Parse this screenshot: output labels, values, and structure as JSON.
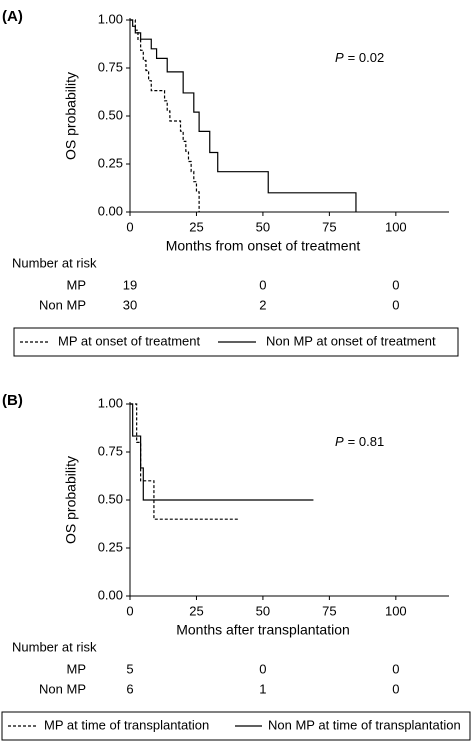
{
  "chart_data": [
    {
      "type": "line",
      "panel_label": "(A)",
      "xlabel": "Months from onset of treatment",
      "ylabel": "OS probability",
      "xlim": [
        0,
        120
      ],
      "ylim": [
        0,
        1
      ],
      "xticks": [
        0,
        25,
        50,
        75,
        100
      ],
      "yticks": [
        {
          "value": 0,
          "label": "0.00"
        },
        {
          "value": 0.25,
          "label": "0.25"
        },
        {
          "value": 0.5,
          "label": "0.50"
        },
        {
          "value": 0.75,
          "label": "0.75"
        },
        {
          "value": 1,
          "label": "1.00"
        }
      ],
      "annotation": {
        "italic": "P",
        "text": "= 0.02"
      },
      "series": [
        {
          "name": "MP at onset of treatment",
          "color": "#000000",
          "linestyle": "dashed",
          "x": [
            0,
            2,
            3,
            4,
            5,
            6,
            7,
            8,
            13,
            14,
            15,
            19,
            20,
            21,
            22,
            23,
            24,
            25,
            26
          ],
          "values": [
            1,
            0.947,
            0.895,
            0.842,
            0.789,
            0.737,
            0.684,
            0.632,
            0.579,
            0.526,
            0.474,
            0.421,
            0.368,
            0.316,
            0.263,
            0.211,
            0.158,
            0.105,
            0
          ]
        },
        {
          "name": "Non MP at onset of treatment",
          "color": "#000000",
          "linestyle": "solid",
          "x": [
            0,
            1,
            2,
            4,
            8,
            10,
            14,
            20,
            24,
            26,
            30,
            33,
            52,
            85
          ],
          "values": [
            1,
            0.967,
            0.933,
            0.9,
            0.85,
            0.8,
            0.73,
            0.62,
            0.52,
            0.42,
            0.31,
            0.21,
            0.1,
            0
          ]
        }
      ],
      "risk_table": {
        "title": "Number at risk",
        "rows": [
          {
            "label": "MP",
            "values": [
              19,
              0,
              0
            ]
          },
          {
            "label": "Non MP",
            "values": [
              30,
              2,
              0
            ]
          }
        ]
      }
    },
    {
      "type": "line",
      "panel_label": "(B)",
      "xlabel": "Months after transplantation",
      "ylabel": "OS probability",
      "xlim": [
        0,
        120
      ],
      "ylim": [
        0,
        1
      ],
      "xticks": [
        0,
        25,
        50,
        75,
        100
      ],
      "yticks": [
        {
          "value": 0,
          "label": "0.00"
        },
        {
          "value": 0.25,
          "label": "0.25"
        },
        {
          "value": 0.5,
          "label": "0.50"
        },
        {
          "value": 0.75,
          "label": "0.75"
        },
        {
          "value": 1,
          "label": "1.00"
        }
      ],
      "annotation": {
        "italic": "P",
        "text": "= 0.81"
      },
      "series": [
        {
          "name": "MP at time of transplantation",
          "color": "#000000",
          "linestyle": "dashed",
          "x": [
            0,
            2.5,
            4,
            9,
            41
          ],
          "values": [
            1,
            0.8,
            0.6,
            0.4,
            0.4
          ]
        },
        {
          "name": "Non MP at time of transplantation",
          "color": "#000000",
          "linestyle": "solid",
          "x": [
            0,
            1,
            4,
            5,
            69
          ],
          "values": [
            1,
            0.833,
            0.667,
            0.5,
            0.5
          ]
        }
      ],
      "risk_table": {
        "title": "Number at risk",
        "rows": [
          {
            "label": "MP",
            "values": [
              5,
              0,
              0
            ]
          },
          {
            "label": "Non MP",
            "values": [
              6,
              1,
              0
            ]
          }
        ]
      }
    }
  ]
}
